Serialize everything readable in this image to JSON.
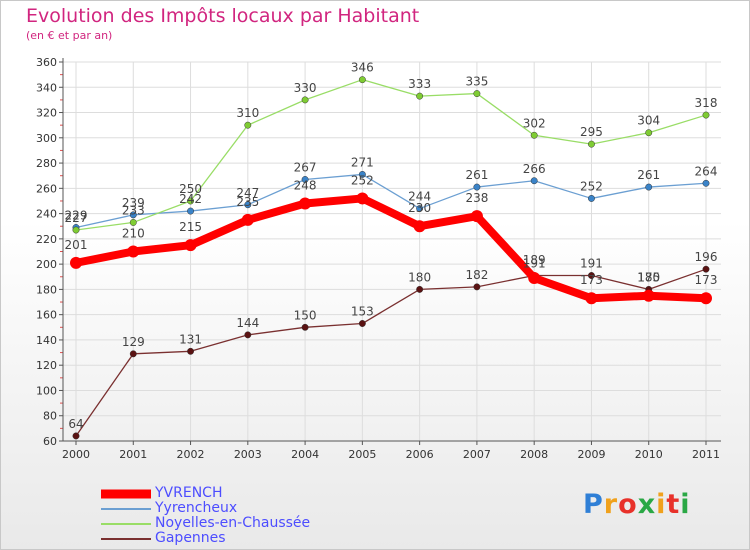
{
  "colors": {
    "title": "#d1257f",
    "legend_text": "#4d4dff",
    "grid": "#dddddd",
    "axis": "#555555"
  },
  "logo": {
    "text": "Proxiti",
    "letter_colors": [
      "#2f7fd6",
      "#f0a11c",
      "#e8312a",
      "#2aa845",
      "#f0a11c",
      "#e8312a",
      "#2aa845"
    ]
  },
  "chart_data": {
    "type": "line",
    "title": "Evolution des Impôts locaux par Habitant",
    "subtitle": "(en € et par an)",
    "x": [
      "2000",
      "2001",
      "2002",
      "2003",
      "2004",
      "2005",
      "2006",
      "2007",
      "2008",
      "2009",
      "2010",
      "2011"
    ],
    "ylim": [
      60,
      360
    ],
    "yticks": [
      60,
      80,
      100,
      120,
      140,
      160,
      180,
      200,
      220,
      240,
      260,
      280,
      300,
      320,
      340,
      360
    ],
    "grid": true,
    "legend_position": "bottom-left",
    "series": [
      {
        "name": "YVRENCH",
        "color": "#ff0000",
        "marker_color": "#ff0000",
        "width": "thick",
        "values": [
          201,
          210,
          215,
          235,
          248,
          252,
          230,
          238,
          189,
          173,
          175,
          173
        ]
      },
      {
        "name": "Yyrencheux",
        "color": "#6b9fd2",
        "marker_color": "#3a83c8",
        "width": "thin",
        "values": [
          229,
          239,
          242,
          247,
          267,
          271,
          244,
          261,
          266,
          252,
          261,
          264
        ]
      },
      {
        "name": "Noyelles-en-Chaussée",
        "color": "#99dd66",
        "marker_color": "#7fcc33",
        "width": "thin",
        "values": [
          227,
          233,
          250,
          310,
          330,
          346,
          333,
          335,
          302,
          295,
          304,
          318
        ]
      },
      {
        "name": "Gapennes",
        "color": "#7a3030",
        "marker_color": "#5a1212",
        "width": "thin",
        "values": [
          64,
          129,
          131,
          144,
          150,
          153,
          180,
          182,
          191,
          191,
          180,
          196
        ]
      }
    ]
  }
}
